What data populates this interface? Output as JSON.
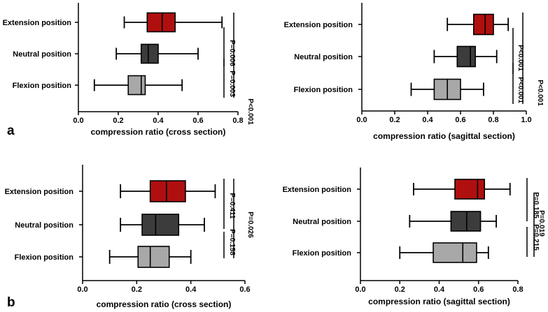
{
  "figure_labels": {
    "a": "a",
    "b": "b"
  },
  "colors": {
    "extension": "#b00f0f",
    "neutral": "#3c3c3c",
    "flexion": "#a8a8a8"
  },
  "chart_data": [
    {
      "type": "boxplot",
      "panel": "a-left",
      "xlabel": "compression ratio (cross section)",
      "xlim": [
        0,
        0.8
      ],
      "ticks": [
        0,
        0.2,
        0.4,
        0.6,
        0.8
      ],
      "tick_labels": [
        "0.0",
        "0.2",
        "0.4",
        "0.6",
        "0.8"
      ],
      "series": [
        {
          "name": "Extension position",
          "min": 0.23,
          "q1": 0.345,
          "median": 0.42,
          "q3": 0.485,
          "max": 0.72
        },
        {
          "name": "Neutral position",
          "min": 0.19,
          "q1": 0.315,
          "median": 0.35,
          "q3": 0.4,
          "max": 0.6
        },
        {
          "name": "Flexion position",
          "min": 0.08,
          "q1": 0.25,
          "median": 0.315,
          "q3": 0.335,
          "max": 0.52
        }
      ],
      "pvalues": [
        {
          "pair": [
            "Extension position",
            "Neutral position"
          ],
          "label": "P=0.006"
        },
        {
          "pair": [
            "Neutral position",
            "Flexion position"
          ],
          "label": "P=0.003"
        },
        {
          "pair": [
            "Extension position",
            "Flexion position"
          ],
          "label": "P<0.001"
        }
      ]
    },
    {
      "type": "boxplot",
      "panel": "a-right",
      "xlabel": "compression ratio (sagittal section)",
      "xlim": [
        0,
        1.0
      ],
      "ticks": [
        0,
        0.2,
        0.4,
        0.6,
        0.8,
        1.0
      ],
      "tick_labels": [
        "0.0",
        "0.2",
        "0.4",
        "0.6",
        "0.8",
        "1.0"
      ],
      "series": [
        {
          "name": "Extension position",
          "min": 0.52,
          "q1": 0.68,
          "median": 0.75,
          "q3": 0.8,
          "max": 0.89
        },
        {
          "name": "Neutral position",
          "min": 0.44,
          "q1": 0.58,
          "median": 0.66,
          "q3": 0.69,
          "max": 0.82
        },
        {
          "name": "Flexion position",
          "min": 0.3,
          "q1": 0.44,
          "median": 0.52,
          "q3": 0.6,
          "max": 0.74
        }
      ],
      "pvalues": [
        {
          "pair": [
            "Extension position",
            "Neutral position"
          ],
          "label": "P<0.001"
        },
        {
          "pair": [
            "Neutral position",
            "Flexion position"
          ],
          "label": "P<0.001"
        },
        {
          "pair": [
            "Extension position",
            "Flexion position"
          ],
          "label": "P<0.001"
        }
      ]
    },
    {
      "type": "boxplot",
      "panel": "b-left",
      "xlabel": "compression ratio (cross section)",
      "xlim": [
        0,
        0.6
      ],
      "ticks": [
        0,
        0.2,
        0.4,
        0.6
      ],
      "tick_labels": [
        "0.0",
        "0.2",
        "0.4",
        "0.6"
      ],
      "series": [
        {
          "name": "Extension position",
          "min": 0.14,
          "q1": 0.25,
          "median": 0.31,
          "q3": 0.38,
          "max": 0.49
        },
        {
          "name": "Neutral position",
          "min": 0.14,
          "q1": 0.22,
          "median": 0.27,
          "q3": 0.355,
          "max": 0.45
        },
        {
          "name": "Flexion position",
          "min": 0.1,
          "q1": 0.205,
          "median": 0.25,
          "q3": 0.32,
          "max": 0.4
        }
      ],
      "pvalues": [
        {
          "pair": [
            "Extension position",
            "Neutral position"
          ],
          "label": "P=0.411"
        },
        {
          "pair": [
            "Neutral position",
            "Flexion position"
          ],
          "label": "P=0.158"
        },
        {
          "pair": [
            "Extension position",
            "Flexion position"
          ],
          "label": "P=0.026"
        }
      ]
    },
    {
      "type": "boxplot",
      "panel": "b-right",
      "xlabel": "compression ratio (sagittal section)",
      "xlim": [
        0,
        0.8
      ],
      "ticks": [
        0,
        0.2,
        0.4,
        0.6,
        0.8
      ],
      "tick_labels": [
        "0.0",
        "0.2",
        "0.4",
        "0.6",
        "0.8"
      ],
      "series": [
        {
          "name": "Extension position",
          "min": 0.27,
          "q1": 0.48,
          "median": 0.595,
          "q3": 0.63,
          "max": 0.76
        },
        {
          "name": "Neutral position",
          "min": 0.25,
          "q1": 0.46,
          "median": 0.54,
          "q3": 0.61,
          "max": 0.69
        },
        {
          "name": "Flexion position",
          "min": 0.2,
          "q1": 0.37,
          "median": 0.52,
          "q3": 0.59,
          "max": 0.65
        }
      ],
      "pvalues": [
        {
          "pair": [
            "Extension position",
            "Neutral position"
          ],
          "label": "P=0.185"
        },
        {
          "pair": [
            "Neutral position",
            "Flexion position"
          ],
          "label": "P=0.215"
        },
        {
          "pair": [
            "Extension position",
            "Flexion position"
          ],
          "label": "P=0.019"
        }
      ]
    }
  ]
}
